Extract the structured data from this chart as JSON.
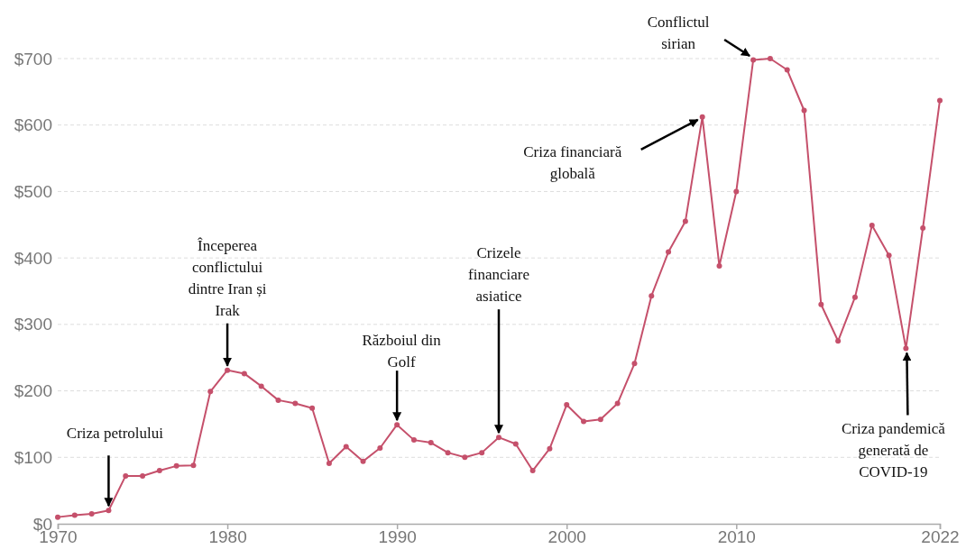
{
  "chart_data": {
    "type": "line",
    "x": [
      1970,
      1971,
      1972,
      1973,
      1974,
      1975,
      1976,
      1977,
      1978,
      1979,
      1980,
      1981,
      1982,
      1983,
      1984,
      1985,
      1986,
      1987,
      1988,
      1989,
      1990,
      1991,
      1992,
      1993,
      1994,
      1995,
      1996,
      1997,
      1998,
      1999,
      2000,
      2001,
      2002,
      2003,
      2004,
      2005,
      2006,
      2007,
      2008,
      2009,
      2010,
      2011,
      2012,
      2013,
      2014,
      2015,
      2016,
      2017,
      2018,
      2019,
      2020,
      2021,
      2022
    ],
    "series": [
      {
        "color": "#c5506b",
        "values": [
          10,
          13,
          15,
          20,
          72,
          72,
          80,
          87,
          88,
          199,
          231,
          226,
          207,
          186,
          181,
          174,
          91,
          116,
          94,
          114,
          149,
          126,
          122,
          107,
          100,
          107,
          130,
          120,
          80,
          113,
          179,
          154,
          157,
          181,
          241,
          343,
          409,
          455,
          612,
          388,
          500,
          698,
          700,
          683,
          622,
          330,
          275,
          341,
          449,
          404,
          264,
          445,
          637
        ]
      }
    ],
    "xlim": [
      1970,
      2022
    ],
    "xticks": [
      1970,
      1980,
      1990,
      2000,
      2010,
      2022
    ],
    "ylim": [
      0,
      700
    ],
    "yticks": [
      {
        "value": 0,
        "label": "$0"
      },
      {
        "value": 100,
        "label": "$100"
      },
      {
        "value": 200,
        "label": "$200"
      },
      {
        "value": 300,
        "label": "$300"
      },
      {
        "value": 400,
        "label": "$400"
      },
      {
        "value": 500,
        "label": "$500"
      },
      {
        "value": 600,
        "label": "$600"
      },
      {
        "value": 700,
        "label": "$700"
      }
    ],
    "grid": "y",
    "marker": "circle",
    "line_style": "solid",
    "annotations": [
      {
        "text": "Criza petrolului",
        "x": 1973,
        "y": 20
      },
      {
        "text": "Începerea conflictului dintre Iran și Irak",
        "x": 1980,
        "y": 231
      },
      {
        "text": "Războiul din Golf",
        "x": 1990,
        "y": 149
      },
      {
        "text": "Crizele financiare asiatice",
        "x": 1996,
        "y": 130
      },
      {
        "text": "Criza financiară globală",
        "x": 2008,
        "y": 612
      },
      {
        "text": "Conflictul sirian",
        "x": 2011,
        "y": 700
      },
      {
        "text": "Criza pandemică generată de COVID-19",
        "x": 2020,
        "y": 264
      }
    ]
  }
}
